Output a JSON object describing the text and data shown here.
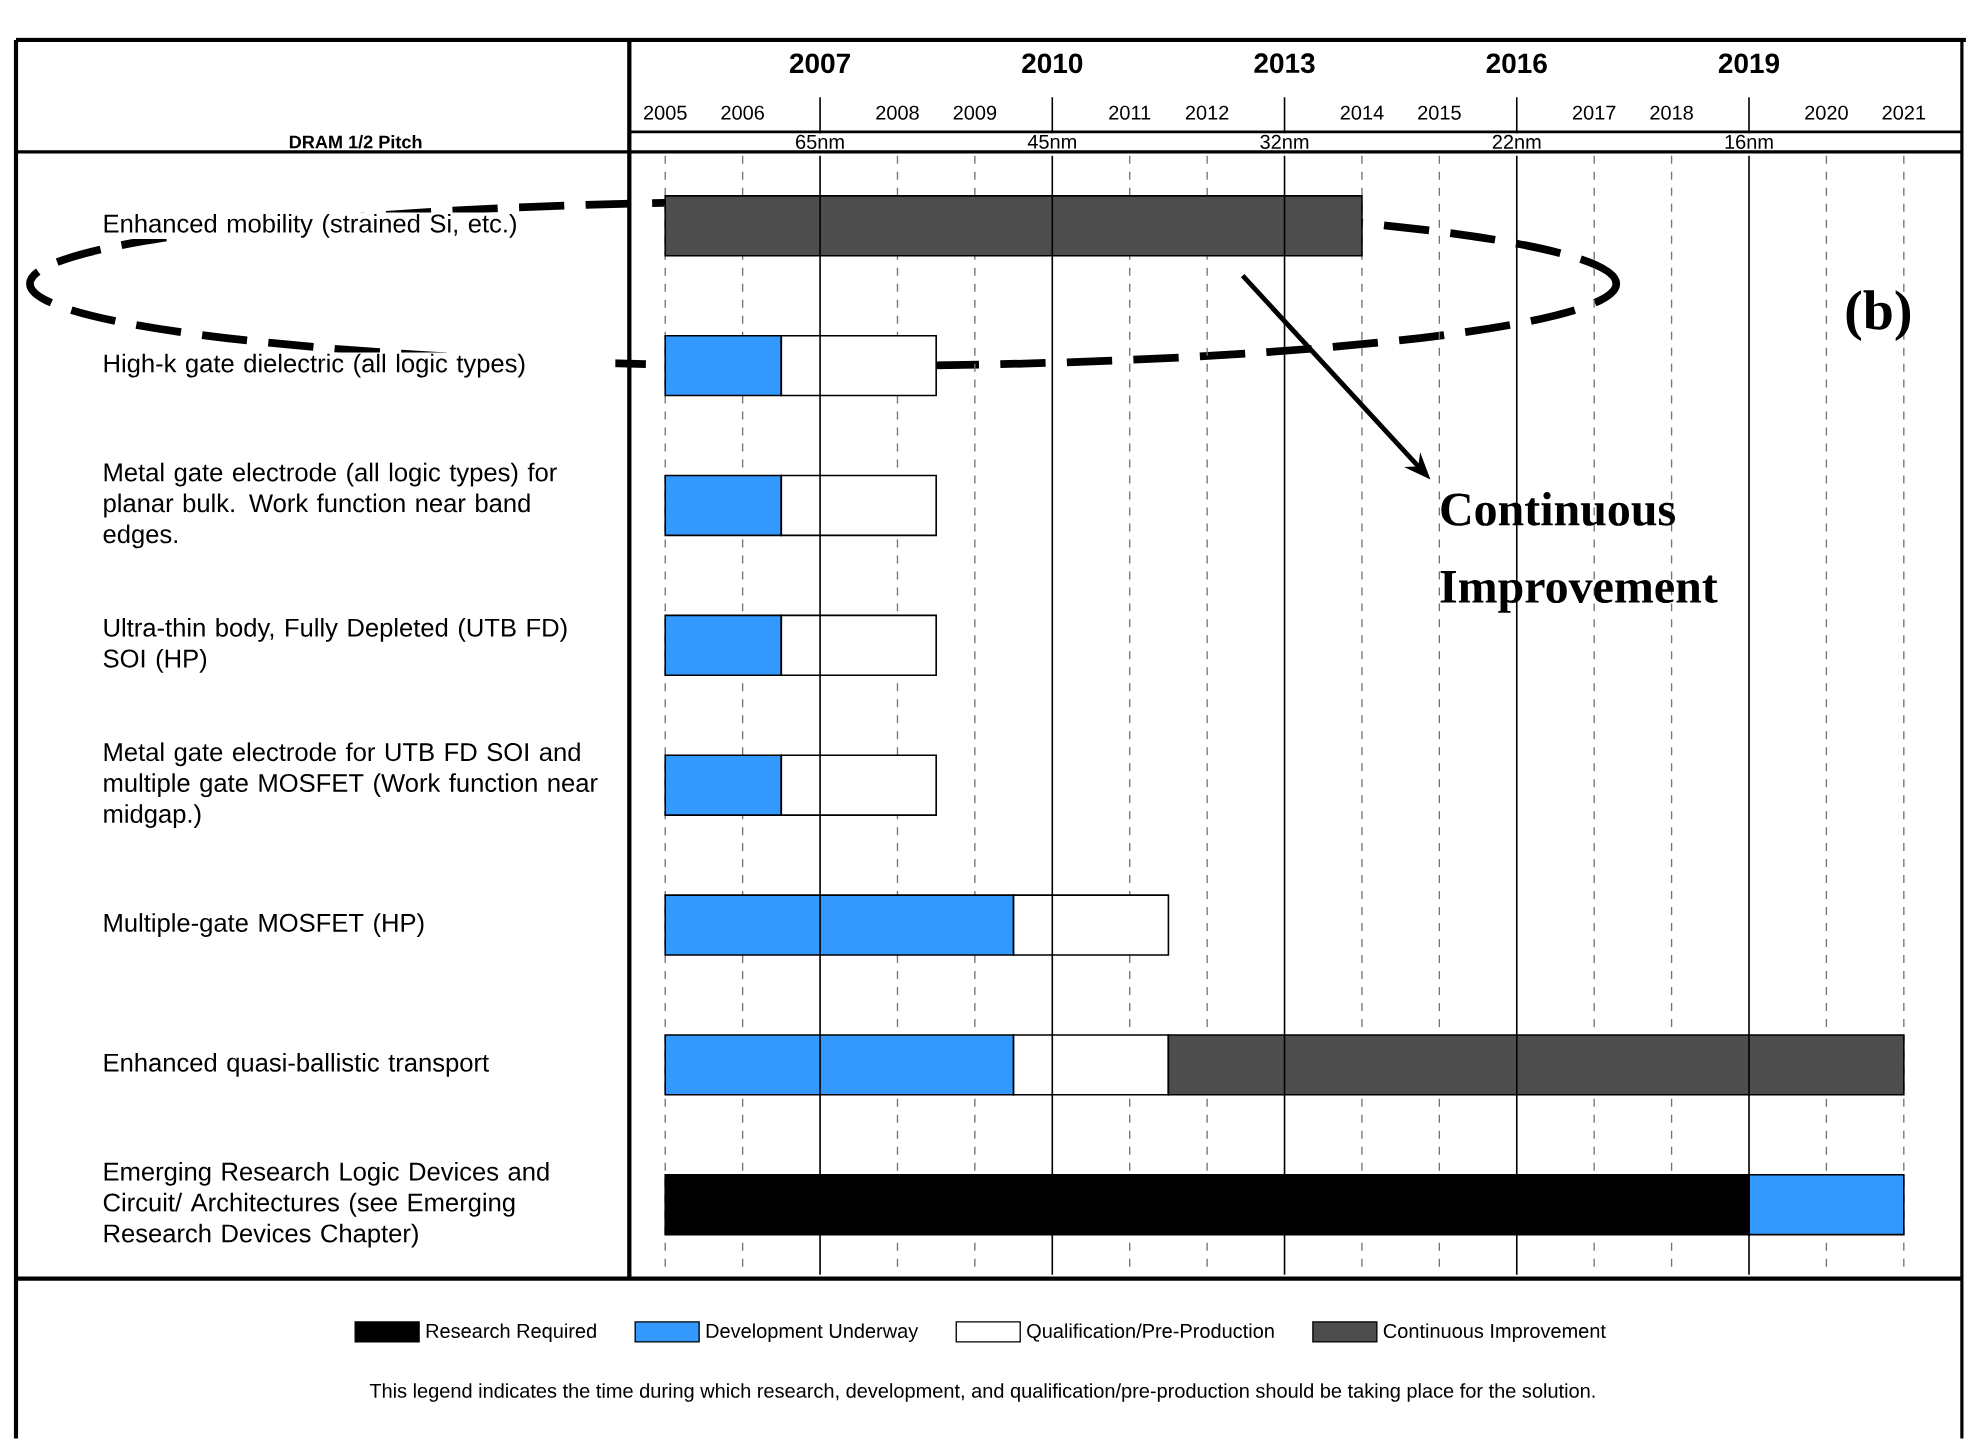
{
  "chart_data": {
    "type": "bar",
    "orientation": "horizontal",
    "categories": [
      "Enhanced mobility (strained Si, etc.)",
      "High-k gate dielectric (all logic types)",
      "Metal gate electrode (all logic types) for planar bulk. Work function near band edges.",
      "Ultra-thin body, Fully Depleted (UTB FD) SOI (HP)",
      "Metal gate electrode for UTB FD SOI and multiple gate MOSFET (Work function near midgap.)",
      "Multiple-gate MOSFET (HP)",
      "Enhanced quasi-ballistic transport",
      "Emerging Research Logic Devices and Circuit/ Architectures (see Emerging Research Devices Chapter)"
    ],
    "series": [
      {
        "name": "Research Required",
        "color": "#000000",
        "base": [
          null,
          null,
          null,
          null,
          null,
          null,
          null,
          2005
        ],
        "values": [
          null,
          null,
          null,
          null,
          null,
          null,
          null,
          14
        ]
      },
      {
        "name": "Development Underway",
        "color": "#3399ff",
        "base": [
          null,
          2005,
          2005,
          2005,
          2005,
          2005,
          2005,
          2019
        ],
        "values": [
          null,
          1.5,
          1.5,
          1.5,
          1.5,
          4.5,
          4.5,
          2
        ]
      },
      {
        "name": "Qualification/Pre-Production",
        "color": "#ffffff",
        "base": [
          null,
          2006.5,
          2006.5,
          2006.5,
          2006.5,
          2009.5,
          2009.5,
          null
        ],
        "values": [
          null,
          2,
          2,
          2,
          2,
          2,
          2,
          null
        ]
      },
      {
        "name": "Continuous Improvement",
        "color": "#4d4d4d",
        "base": [
          2005,
          null,
          null,
          null,
          null,
          null,
          2011.5,
          null
        ],
        "values": [
          9,
          null,
          null,
          null,
          null,
          null,
          9.5,
          null
        ]
      }
    ],
    "xlim": [
      2004.5,
      2021.75
    ],
    "xticks": [
      2005,
      2006,
      2008,
      2009,
      2011,
      2012,
      2014,
      2015,
      2017,
      2018,
      2020,
      2021
    ],
    "x2lim": [
      2004.5,
      2021.75
    ],
    "x2ticks": [
      2007,
      2010,
      2013,
      2016,
      2019
    ],
    "grid": "x",
    "legend": "bottom",
    "annotations": [
      "(b)",
      "Continuous Improvement",
      "This legend indicates the time during which research, development, and qualification/pre-production should be taking place for the solution.",
      "DRAM 1/2 Pitch",
      "65nm",
      "45nm",
      "32nm",
      "22nm",
      "16nm"
    ]
  }
}
